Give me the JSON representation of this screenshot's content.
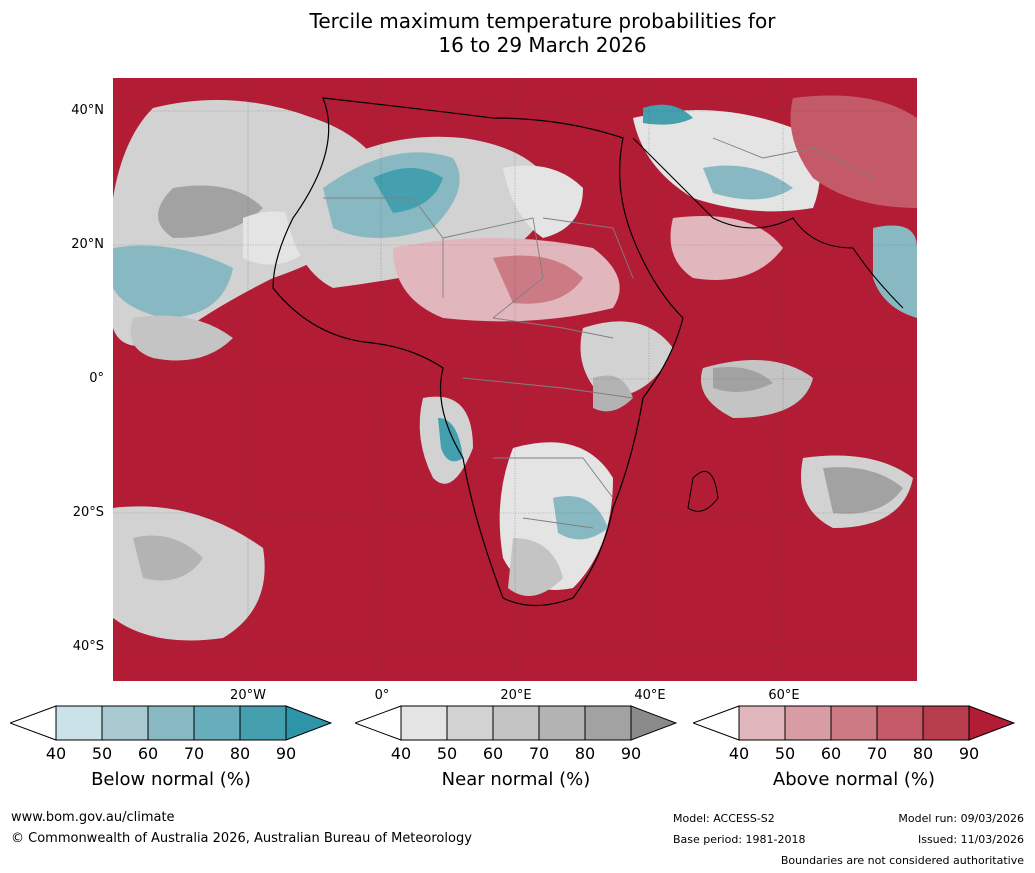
{
  "title": {
    "line1": "Tercile maximum temperature probabilities for",
    "line2": "16 to 29 March 2026"
  },
  "axes": {
    "lat_labels": [
      "40°N",
      "20°N",
      "0°",
      "20°S",
      "40°S"
    ],
    "lon_labels": [
      "20°W",
      "0°",
      "20°E",
      "40°E",
      "60°E"
    ]
  },
  "colorbars": [
    {
      "name": "below",
      "title": "Below normal (%)",
      "ticks": [
        "40",
        "50",
        "60",
        "70",
        "80",
        "90"
      ],
      "colors": [
        "#cbe2e8",
        "#a8c9d0",
        "#88b9c3",
        "#68adbb",
        "#449faf",
        "#2e94a8"
      ]
    },
    {
      "name": "near",
      "title": "Near normal (%)",
      "ticks": [
        "40",
        "50",
        "60",
        "70",
        "80",
        "90"
      ],
      "colors": [
        "#e4e4e4",
        "#d2d2d2",
        "#c4c4c4",
        "#b3b3b3",
        "#a2a2a2",
        "#8a8a8a"
      ]
    },
    {
      "name": "above",
      "title": "Above normal (%)",
      "ticks": [
        "40",
        "50",
        "60",
        "70",
        "80",
        "90"
      ],
      "colors": [
        "#e2b6bd",
        "#d79ca4",
        "#cc7a84",
        "#c45a67",
        "#b83d4c",
        "#b21d35"
      ]
    }
  ],
  "footer": {
    "url": "www.bom.gov.au/climate",
    "copyright": "© Commonwealth of Australia 2026, Australian Bureau of Meteorology",
    "model": "Model: ACCESS-S2",
    "base_period": "Base period: 1981-2018",
    "model_run": "Model run: 09/03/2026",
    "issued": "Issued: 11/03/2026",
    "disclaimer": "Boundaries are not considered authoritative"
  }
}
